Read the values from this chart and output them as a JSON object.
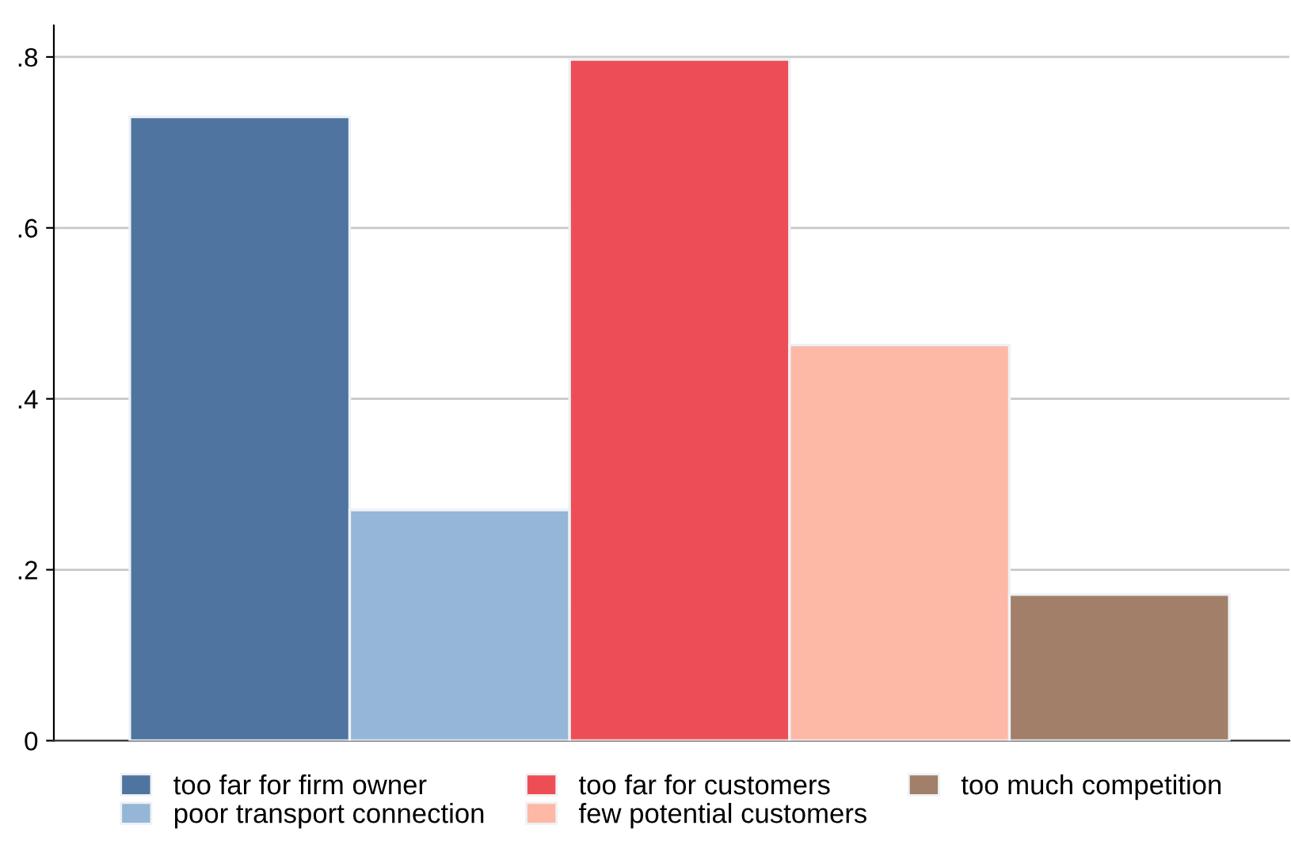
{
  "chart_data": {
    "type": "bar",
    "categories": [
      null
    ],
    "series": [
      {
        "name": "too far for firm owner",
        "color": "#4f74a0",
        "values": [
          0.73
        ]
      },
      {
        "name": "poor transport connection",
        "color": "#96b6d8",
        "values": [
          0.27
        ]
      },
      {
        "name": "too far for customers",
        "color": "#ed4e55",
        "values": [
          0.797
        ]
      },
      {
        "name": "few potential customers",
        "color": "#fdb9a6",
        "values": [
          0.463
        ]
      },
      {
        "name": "too much competition",
        "color": "#a17f69",
        "values": [
          0.171
        ]
      }
    ],
    "ylim": [
      0,
      0.837
    ],
    "yticks": [
      0,
      {
        "value": 0.2,
        "label": ".2"
      },
      {
        "value": 0.4,
        "label": ".4"
      },
      {
        "value": 0.6,
        "label": ".6"
      },
      {
        "value": 0.8,
        "label": ".8"
      }
    ],
    "grid": "y",
    "legend": "bottom"
  }
}
